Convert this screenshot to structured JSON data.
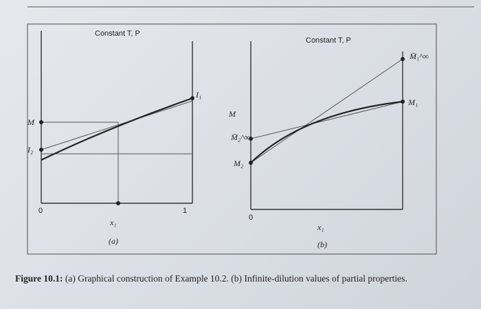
{
  "panel_a": {
    "condition": "Constant T, P",
    "m_label": "M",
    "intercept2": "I₂",
    "intercept1": "I₁",
    "x_min": "0",
    "x_max": "1",
    "x_label": "x₁",
    "panel": "(a)"
  },
  "panel_b": {
    "condition": "Constant T, P",
    "m1_inf": "M̄₁^∞",
    "m1": "M₁",
    "m_label": "M",
    "m2_inf": "M̄₂^∞",
    "m2": "M₂",
    "x_min": "0",
    "x_label": "x₁",
    "panel": "(b)"
  },
  "caption": {
    "label": "Figure 10.1:",
    "text": "(a) Graphical construction of Example 10.2. (b) Infinite-dilution values of partial properties."
  }
}
